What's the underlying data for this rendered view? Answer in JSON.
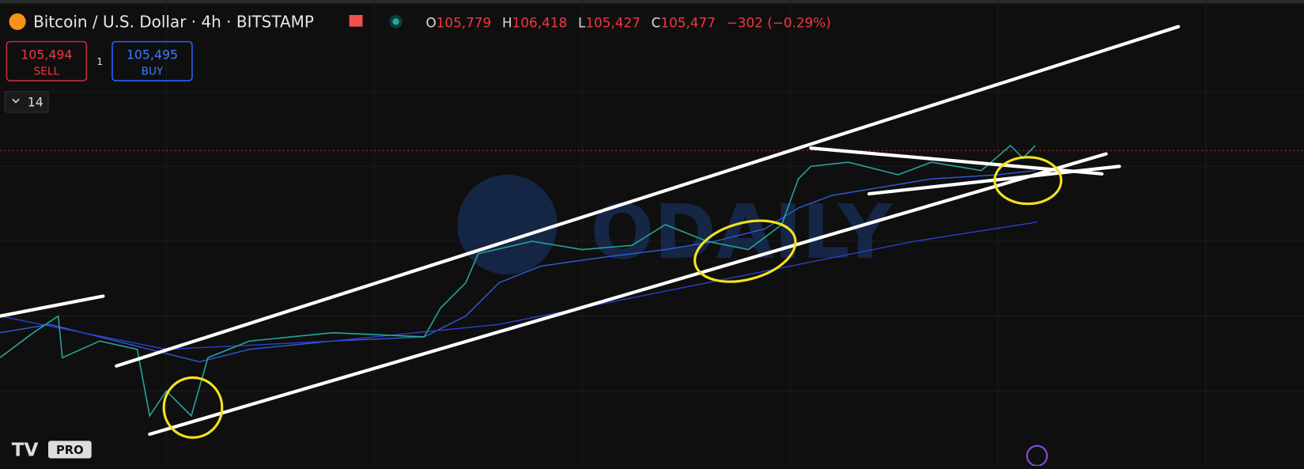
{
  "header": {
    "title": "Bitcoin / U.S. Dollar · 4h · BITSTAMP",
    "ohlc": [
      {
        "label": "O",
        "value": "105,779"
      },
      {
        "label": "H",
        "value": "106,418"
      },
      {
        "label": "L",
        "value": "105,427"
      },
      {
        "label": "C",
        "value": "105,477"
      }
    ],
    "change": "−302 (−0.29%)"
  },
  "trade": {
    "sell_price": "105,494",
    "sell_label": "SELL",
    "quantity": "1",
    "buy_price": "105,495",
    "buy_label": "BUY"
  },
  "indicator_toggle": "14",
  "watermark": "ODAILY",
  "logo_badge": "PRO"
}
